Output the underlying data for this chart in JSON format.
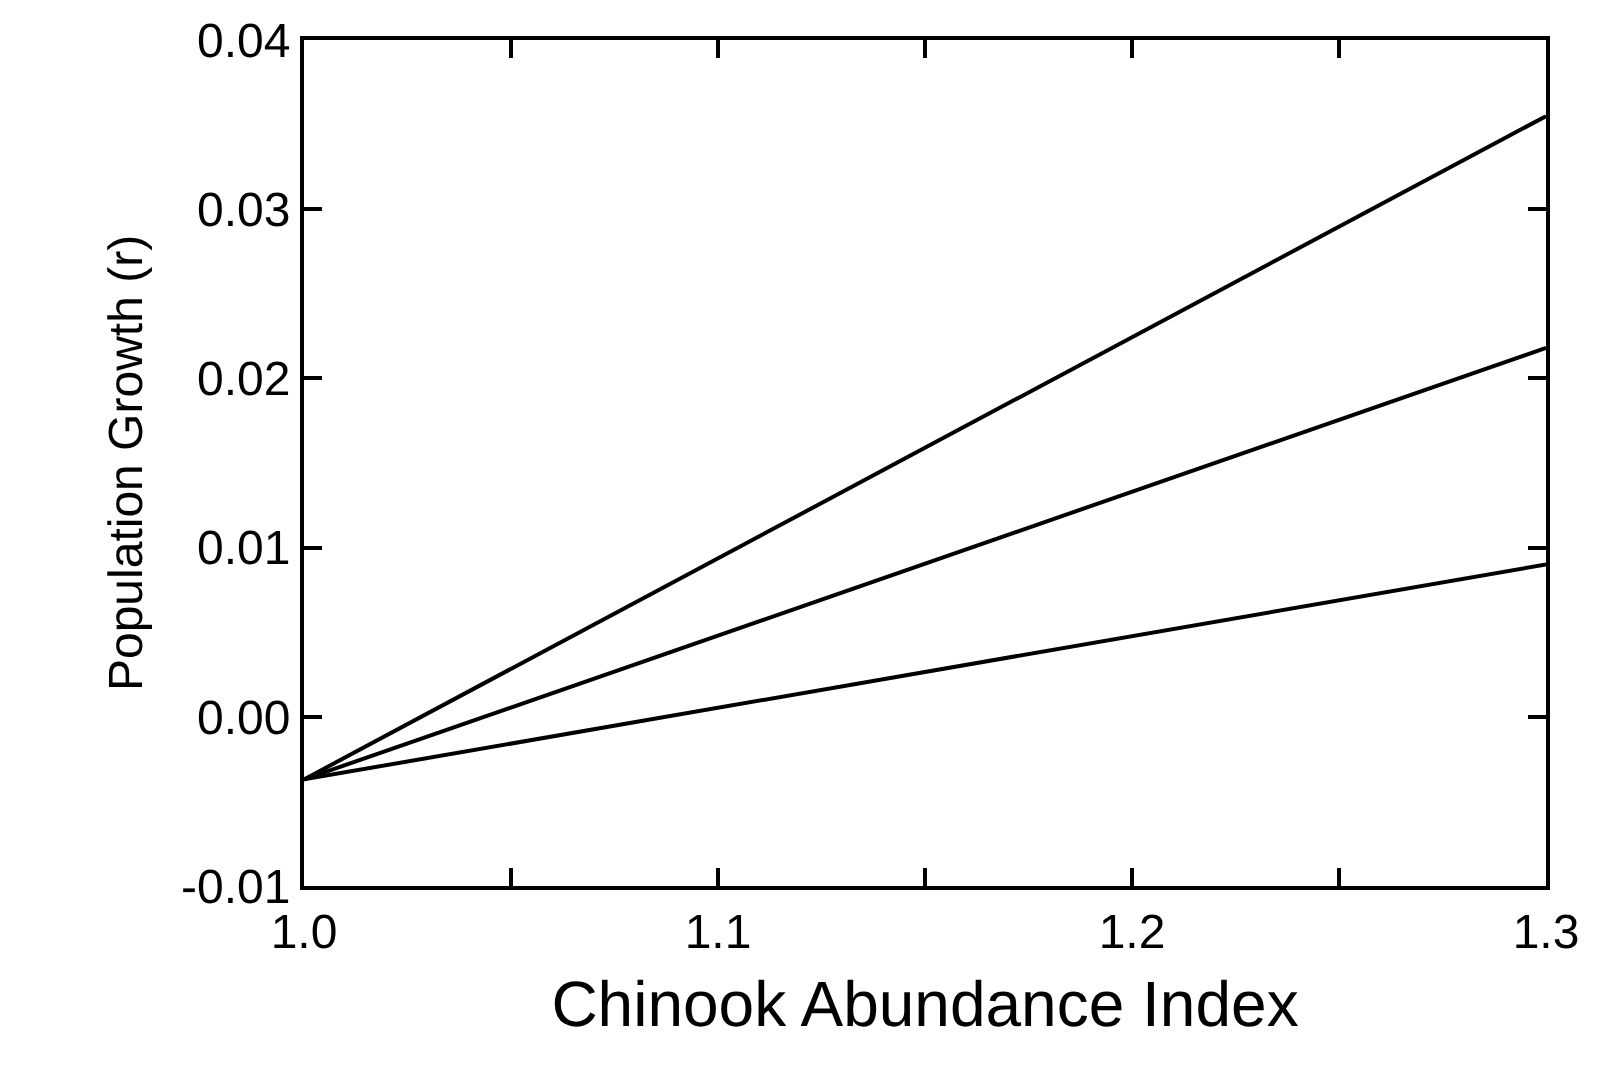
{
  "chart_data": {
    "type": "line",
    "xlabel": "Chinook Abundance Index",
    "ylabel": "Population Growth (r)",
    "x": [
      1.0,
      1.3
    ],
    "series": [
      {
        "color": "#000000",
        "values": [
          -0.0037,
          0.0355
        ]
      },
      {
        "color": "#000000",
        "values": [
          -0.0037,
          0.0218
        ]
      },
      {
        "color": "#000000",
        "values": [
          -0.0037,
          0.009
        ]
      }
    ],
    "xlim": [
      1.0,
      1.3
    ],
    "ylim": [
      -0.01,
      0.04
    ],
    "xticks": [
      {
        "value": 1.0,
        "label": "1.0"
      },
      {
        "value": 1.05,
        "label": null
      },
      {
        "value": 1.1,
        "label": "1.1"
      },
      {
        "value": 1.15,
        "label": null
      },
      {
        "value": 1.2,
        "label": "1.2"
      },
      {
        "value": 1.25,
        "label": null
      },
      {
        "value": 1.3,
        "label": "1.3"
      }
    ],
    "yticks": [
      {
        "value": -0.01,
        "label": "-0.01"
      },
      {
        "value": 0,
        "label": "0.00"
      },
      {
        "value": 0.01,
        "label": "0.01"
      },
      {
        "value": 0.02,
        "label": "0.02"
      },
      {
        "value": 0.03,
        "label": "0.03"
      },
      {
        "value": 0.04,
        "label": "0.04"
      }
    ],
    "marker": "none",
    "line_style": "solid"
  }
}
